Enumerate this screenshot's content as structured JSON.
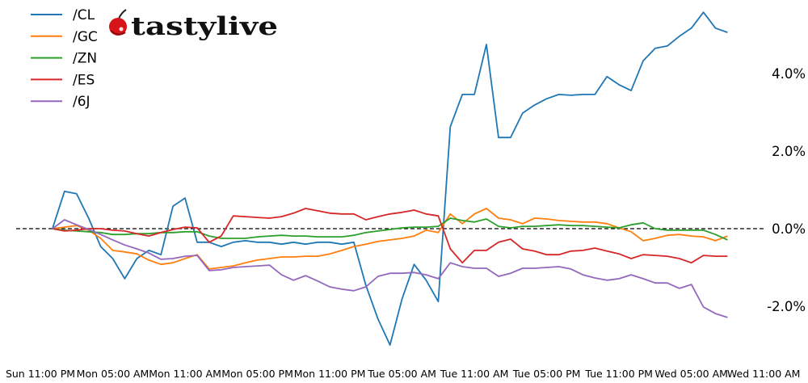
{
  "logo": {
    "text": "tastylive",
    "icon": "cherry-icon"
  },
  "chart_data": {
    "type": "line",
    "title": "",
    "xlabel": "",
    "ylabel": "",
    "ylim": [
      -3.2,
      5.8
    ],
    "grid": false,
    "legend_position": "top-left",
    "reference_line": {
      "y": 0,
      "style": "dashed",
      "color": "#000000"
    },
    "yticks": [
      -2,
      0,
      2,
      4
    ],
    "ytick_labels": [
      "-2.0%",
      "0.0%",
      "2.0%",
      "4.0%"
    ],
    "xtick_labels": [
      "Sun 11:00 PM",
      "Mon 05:00 AM",
      "Mon 11:00 AM",
      "Mon 05:00 PM",
      "Mon 11:00 PM",
      "Tue 05:00 AM",
      "Tue 11:00 AM",
      "Tue 05:00 PM",
      "Tue 11:00 PM",
      "Wed 05:00 AM",
      "Wed 11:00 AM"
    ],
    "x": [
      "Mon 00:00",
      "Mon 01:00",
      "Mon 02:00",
      "Mon 03:00",
      "Mon 04:00",
      "Mon 05:00",
      "Mon 06:00",
      "Mon 07:00",
      "Mon 08:00",
      "Mon 09:00",
      "Mon 10:00",
      "Mon 11:00",
      "Mon 12:00",
      "Mon 13:00",
      "Mon 14:00",
      "Mon 15:00",
      "Mon 16:00",
      "Mon 17:00",
      "Mon 18:00",
      "Mon 19:00",
      "Mon 20:00",
      "Mon 21:00",
      "Mon 22:00",
      "Mon 23:00",
      "Tue 00:00",
      "Tue 01:00",
      "Tue 02:00",
      "Tue 03:00",
      "Tue 04:00",
      "Tue 05:00",
      "Tue 06:00",
      "Tue 07:00",
      "Tue 08:00",
      "Tue 09:00",
      "Tue 10:00",
      "Tue 11:00",
      "Tue 12:00",
      "Tue 13:00",
      "Tue 14:00",
      "Tue 15:00",
      "Tue 16:00",
      "Tue 17:00",
      "Tue 18:00",
      "Tue 19:00",
      "Tue 20:00",
      "Tue 21:00",
      "Tue 22:00",
      "Tue 23:00",
      "Wed 00:00",
      "Wed 01:00",
      "Wed 02:00",
      "Wed 03:00",
      "Wed 04:00",
      "Wed 05:00",
      "Wed 06:00",
      "Wed 07:00",
      "Wed 08:00"
    ],
    "series": [
      {
        "name": "/CL",
        "color": "#1f77b4",
        "values": [
          0,
          0.96,
          0.9,
          0.27,
          -0.46,
          -0.77,
          -1.29,
          -0.77,
          -0.56,
          -0.67,
          0.58,
          0.79,
          -0.35,
          -0.35,
          -0.46,
          -0.35,
          -0.31,
          -0.35,
          -0.35,
          -0.4,
          -0.35,
          -0.4,
          -0.35,
          -0.35,
          -0.4,
          -0.35,
          -1.46,
          -2.33,
          -3.0,
          -1.81,
          -0.92,
          -1.33,
          -1.88,
          2.63,
          3.46,
          3.46,
          4.75,
          2.35,
          2.35,
          2.98,
          3.19,
          3.35,
          3.46,
          3.44,
          3.46,
          3.46,
          3.92,
          3.71,
          3.56,
          4.33,
          4.65,
          4.71,
          4.96,
          5.17,
          5.58,
          5.17,
          5.06
        ]
      },
      {
        "name": "/GC",
        "color": "#ff7f0e",
        "values": [
          0,
          0.04,
          0.08,
          -0.04,
          -0.25,
          -0.56,
          -0.6,
          -0.65,
          -0.81,
          -0.92,
          -0.88,
          -0.77,
          -0.67,
          -1.04,
          -1.0,
          -0.96,
          -0.88,
          -0.81,
          -0.77,
          -0.73,
          -0.73,
          -0.71,
          -0.71,
          -0.65,
          -0.56,
          -0.46,
          -0.4,
          -0.33,
          -0.29,
          -0.25,
          -0.19,
          -0.04,
          -0.1,
          0.38,
          0.13,
          0.38,
          0.52,
          0.27,
          0.23,
          0.13,
          0.27,
          0.25,
          0.21,
          0.19,
          0.17,
          0.17,
          0.13,
          0.02,
          -0.08,
          -0.31,
          -0.25,
          -0.17,
          -0.15,
          -0.19,
          -0.21,
          -0.31,
          -0.19
        ]
      },
      {
        "name": "/ZN",
        "color": "#2ca02c",
        "values": [
          0,
          -0.04,
          -0.06,
          -0.08,
          -0.1,
          -0.15,
          -0.15,
          -0.13,
          -0.13,
          -0.1,
          -0.1,
          -0.08,
          -0.08,
          -0.19,
          -0.25,
          -0.25,
          -0.25,
          -0.21,
          -0.19,
          -0.17,
          -0.19,
          -0.19,
          -0.21,
          -0.21,
          -0.21,
          -0.17,
          -0.1,
          -0.06,
          -0.02,
          0.02,
          0.04,
          0.04,
          0.06,
          0.27,
          0.21,
          0.17,
          0.25,
          0.06,
          0.02,
          0.06,
          0.06,
          0.08,
          0.1,
          0.08,
          0.08,
          0.06,
          0.04,
          0.02,
          0.1,
          0.15,
          0.0,
          -0.04,
          -0.04,
          -0.04,
          -0.04,
          -0.15,
          -0.29
        ]
      },
      {
        "name": "/ES",
        "color": "#d62728",
        "values": [
          0,
          -0.06,
          -0.04,
          0,
          0,
          -0.04,
          -0.06,
          -0.13,
          -0.19,
          -0.1,
          -0.02,
          0.04,
          0.02,
          -0.35,
          -0.19,
          0.33,
          0.31,
          0.29,
          0.27,
          0.31,
          0.4,
          0.52,
          0.46,
          0.4,
          0.38,
          0.38,
          0.23,
          0.31,
          0.38,
          0.42,
          0.48,
          0.38,
          0.33,
          -0.52,
          -0.88,
          -0.56,
          -0.56,
          -0.35,
          -0.27,
          -0.52,
          -0.58,
          -0.67,
          -0.67,
          -0.58,
          -0.56,
          -0.5,
          -0.58,
          -0.65,
          -0.77,
          -0.67,
          -0.69,
          -0.71,
          -0.77,
          -0.88,
          -0.69,
          -0.71,
          -0.71
        ]
      },
      {
        "name": "/6J",
        "color": "#9467bd",
        "values": [
          0,
          0.23,
          0.1,
          -0.02,
          -0.15,
          -0.29,
          -0.42,
          -0.52,
          -0.63,
          -0.79,
          -0.77,
          -0.71,
          -0.69,
          -1.08,
          -1.06,
          -1.0,
          -0.98,
          -0.96,
          -0.94,
          -1.19,
          -1.33,
          -1.21,
          -1.35,
          -1.5,
          -1.56,
          -1.6,
          -1.5,
          -1.23,
          -1.15,
          -1.15,
          -1.13,
          -1.19,
          -1.29,
          -0.88,
          -0.98,
          -1.02,
          -1.02,
          -1.23,
          -1.15,
          -1.02,
          -1.02,
          -1.0,
          -0.98,
          -1.04,
          -1.19,
          -1.27,
          -1.33,
          -1.29,
          -1.19,
          -1.29,
          -1.4,
          -1.4,
          -1.54,
          -1.44,
          -2.02,
          -2.19,
          -2.29
        ]
      }
    ]
  }
}
